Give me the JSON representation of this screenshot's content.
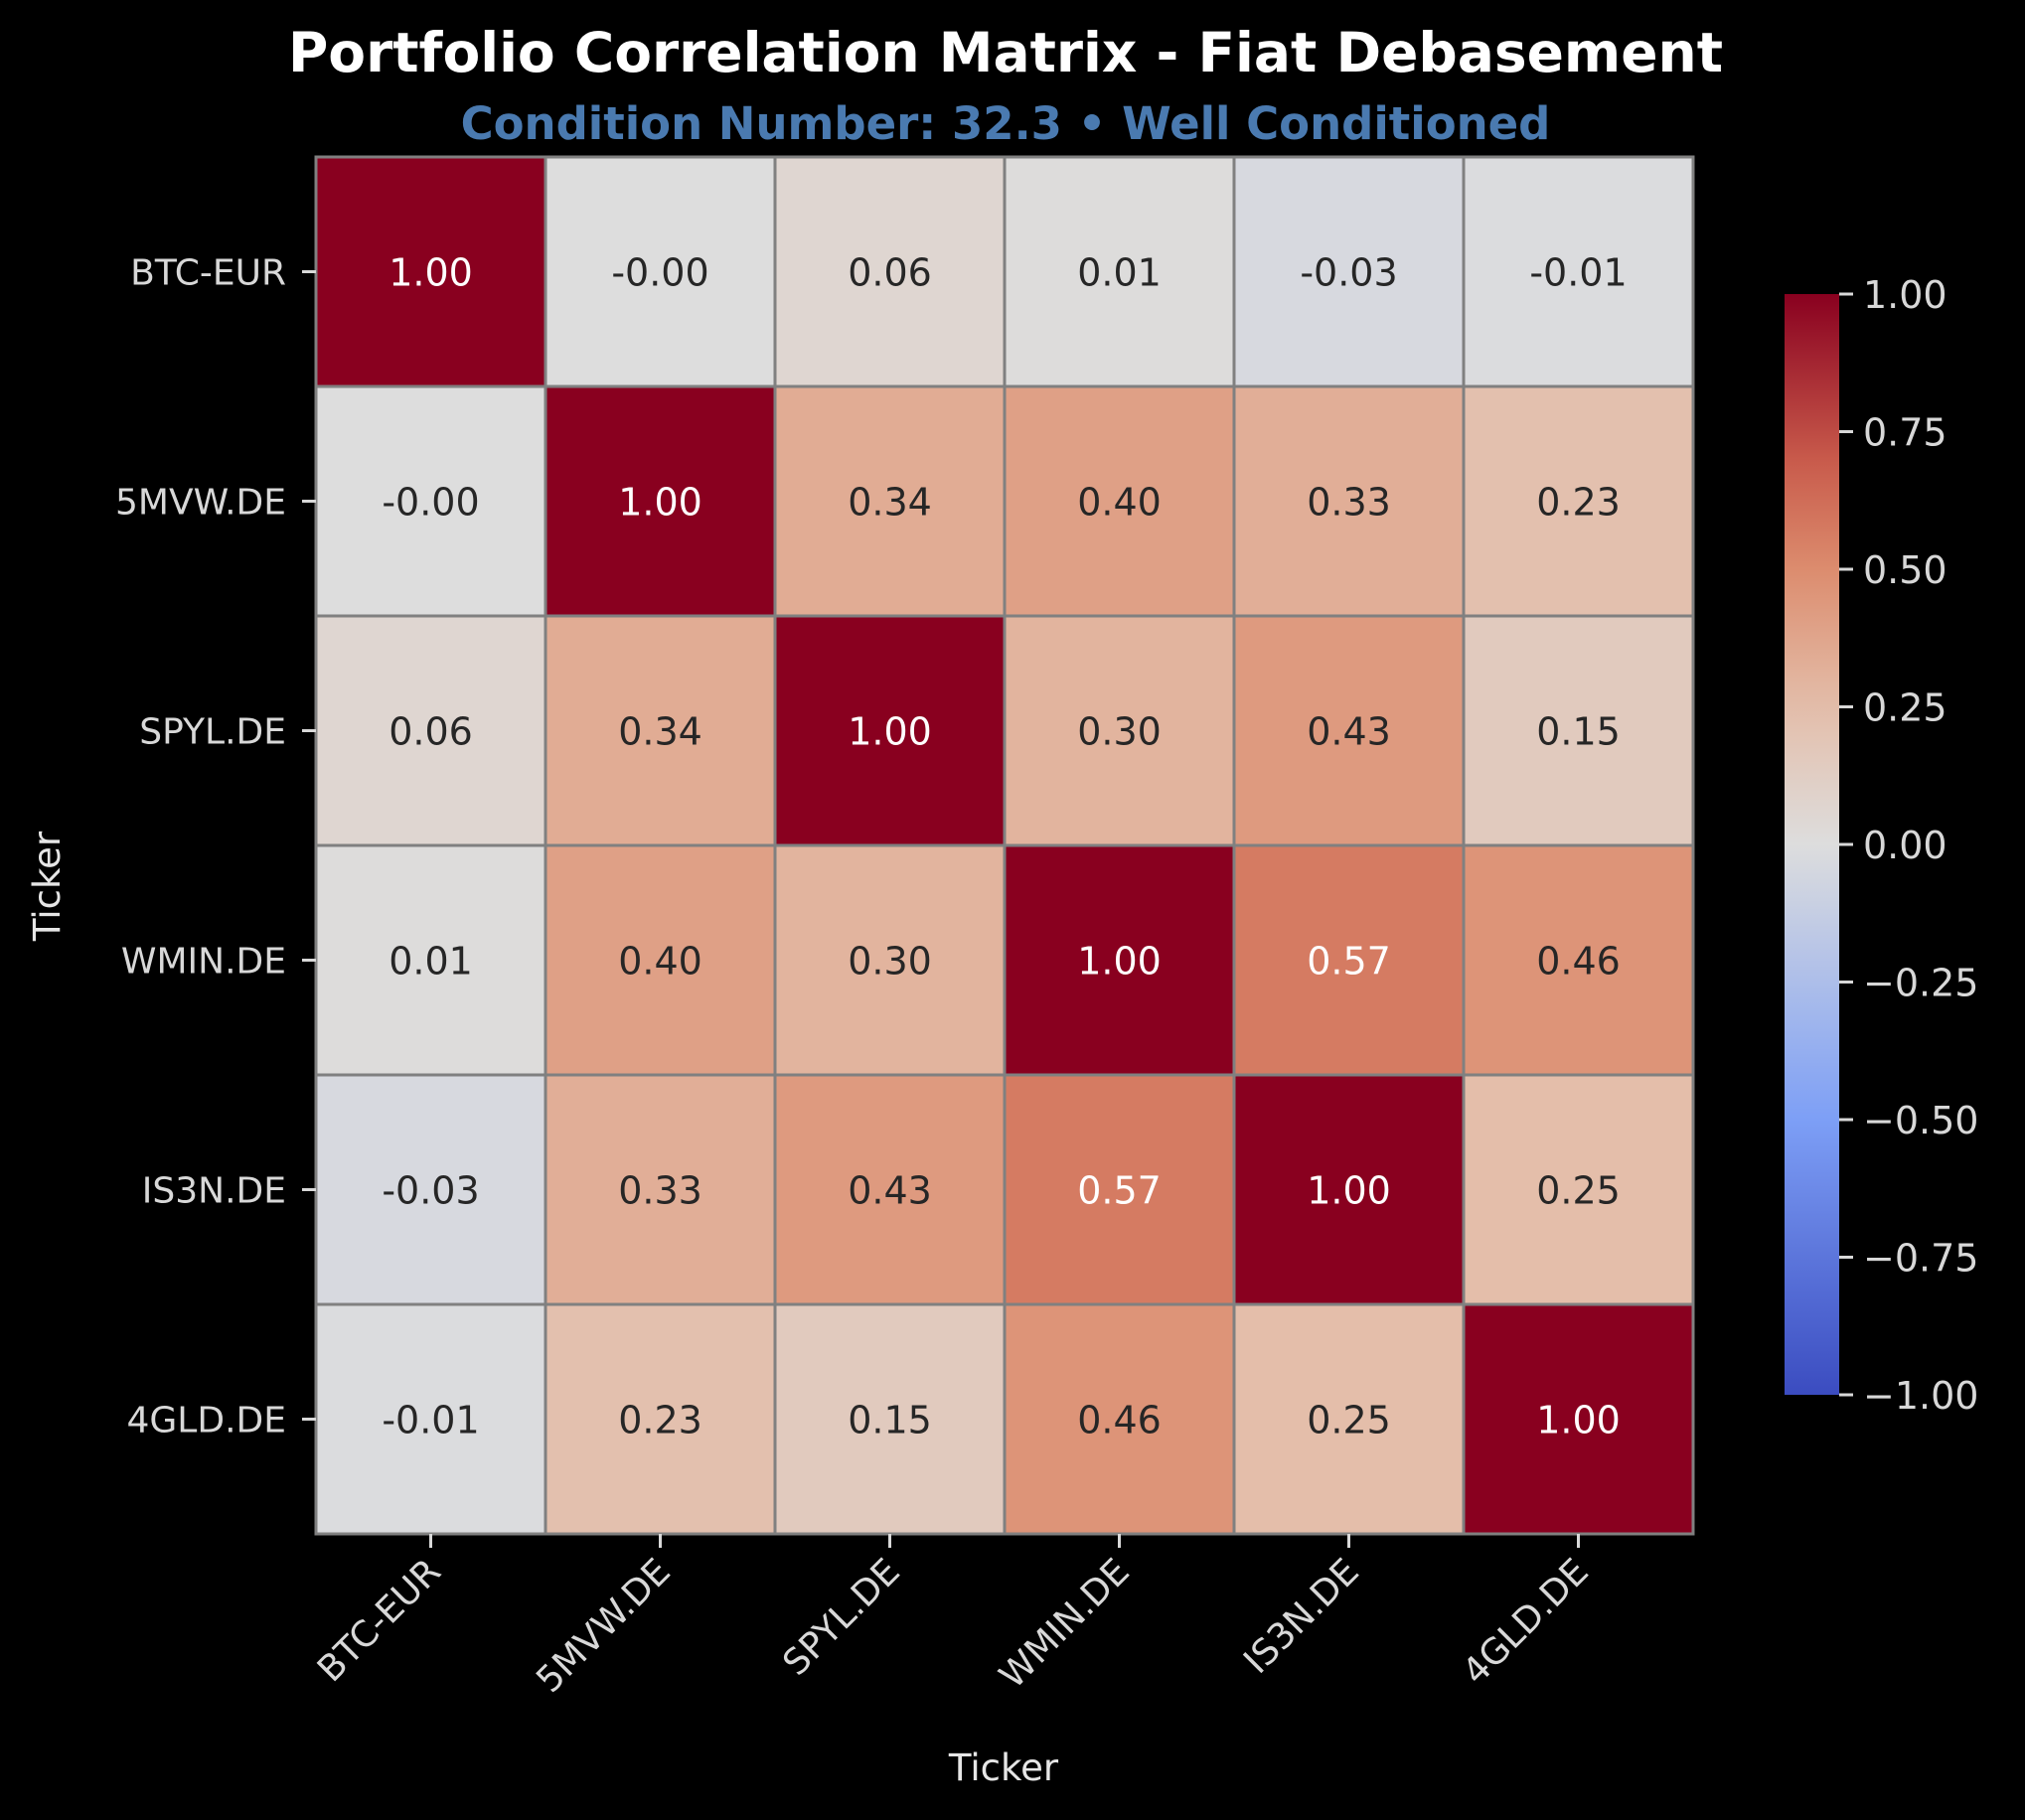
{
  "chart_data": {
    "type": "heatmap",
    "title": "Portfolio Correlation Matrix - Fiat Debasement",
    "subtitle": "Condition Number: 32.3 • Well Conditioned",
    "xlabel": "Ticker",
    "ylabel": "Ticker",
    "x_categories": [
      "BTC-EUR",
      "5MVW.DE",
      "SPYL.DE",
      "WMIN.DE",
      "IS3N.DE",
      "4GLD.DE"
    ],
    "y_categories": [
      "BTC-EUR",
      "5MVW.DE",
      "SPYL.DE",
      "WMIN.DE",
      "IS3N.DE",
      "4GLD.DE"
    ],
    "values": [
      [
        1.0,
        -0.0,
        0.06,
        0.01,
        -0.03,
        -0.01
      ],
      [
        -0.0,
        1.0,
        0.34,
        0.4,
        0.33,
        0.23
      ],
      [
        0.06,
        0.34,
        1.0,
        0.3,
        0.43,
        0.15
      ],
      [
        0.01,
        0.4,
        0.3,
        1.0,
        0.57,
        0.46
      ],
      [
        -0.03,
        0.33,
        0.43,
        0.57,
        1.0,
        0.25
      ],
      [
        -0.01,
        0.23,
        0.15,
        0.46,
        0.25,
        1.0
      ]
    ],
    "value_labels": [
      [
        "1.00",
        "-0.00",
        "0.06",
        "0.01",
        "-0.03",
        "-0.01"
      ],
      [
        "-0.00",
        "1.00",
        "0.34",
        "0.40",
        "0.33",
        "0.23"
      ],
      [
        "0.06",
        "0.34",
        "1.00",
        "0.30",
        "0.43",
        "0.15"
      ],
      [
        "0.01",
        "0.40",
        "0.30",
        "1.00",
        "0.57",
        "0.46"
      ],
      [
        "-0.03",
        "0.33",
        "0.43",
        "0.57",
        "1.00",
        "0.25"
      ],
      [
        "-0.01",
        "0.23",
        "0.15",
        "0.46",
        "0.25",
        "1.00"
      ]
    ],
    "colormap": "coolwarm",
    "vmin": -1.0,
    "vmax": 1.0,
    "colorbar": {
      "ticks": [
        1.0,
        0.75,
        0.5,
        0.25,
        0.0,
        -0.25,
        -0.5,
        -0.75,
        -1.0
      ],
      "tick_labels": [
        "1.00",
        "0.75",
        "0.50",
        "0.25",
        "0.00",
        "−0.25",
        "−0.50",
        "−0.75",
        "−1.00"
      ]
    },
    "grid": false,
    "colors": {
      "background": "#000000",
      "cell_border": "#808080",
      "subtitle": "#4a7ab0",
      "text_dark": "#262626",
      "text_light": "#ffffff"
    }
  }
}
